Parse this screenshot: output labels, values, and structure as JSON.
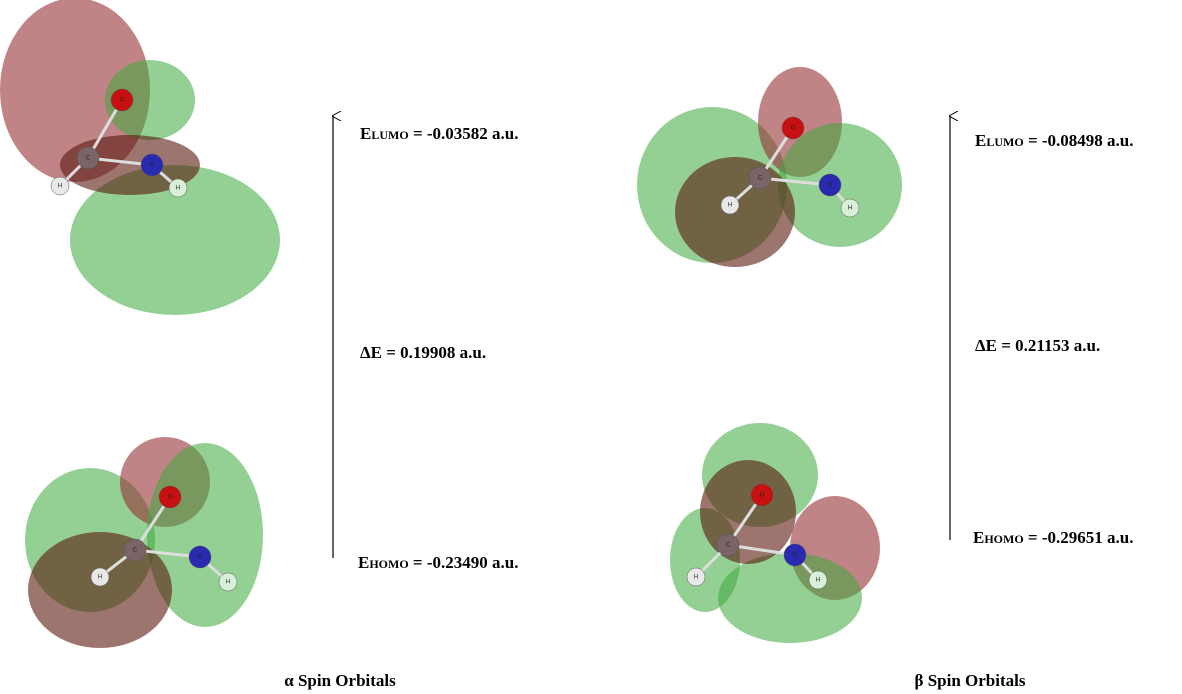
{
  "panels": [
    {
      "lumo": {
        "energy": {
          "symbol": "E",
          "subscript": "LUMO",
          "text": " = -0.03582 a.u."
        },
        "atoms": [
          "O",
          "C",
          "N",
          "H",
          "H"
        ]
      },
      "gap": "ΔE = 0.19908 a.u.",
      "homo": {
        "energy": {
          "symbol": "E",
          "subscript": "HOMO",
          "text": " = -0.23490 a.u."
        },
        "atoms": [
          "O",
          "C",
          "N",
          "H",
          "H"
        ]
      },
      "caption": "α Spin Orbitals"
    },
    {
      "lumo": {
        "energy": {
          "symbol": "E",
          "subscript": "LUMO",
          "text": " = -0.08498 a.u."
        },
        "atoms": [
          "O",
          "C",
          "N",
          "H",
          "H"
        ]
      },
      "gap": "ΔE = 0.21153 a.u.",
      "homo": {
        "energy": {
          "symbol": "E",
          "subscript": "HOMO",
          "text": " = -0.29651 a.u."
        },
        "atoms": [
          "O",
          "C",
          "N",
          "H",
          "H"
        ]
      },
      "caption": "β Spin Orbitals"
    }
  ]
}
